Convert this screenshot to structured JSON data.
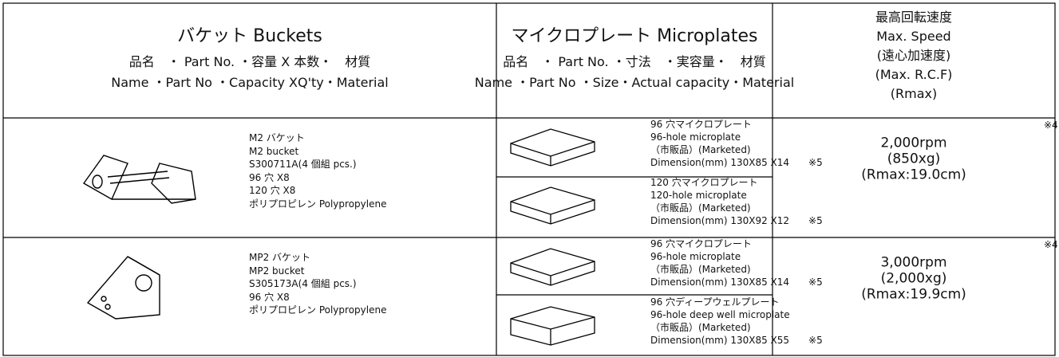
{
  "header": {
    "buckets": [
      "バケット Buckets",
      "品名　・ Part No. ・容量 X 本数・　材質",
      "Name ・Part No ・Capacity XQ'ty・Material"
    ],
    "microplates": [
      "マイクロプレート Microplates",
      "品名　・ Part No. ・寸法　・実容量・　材質",
      "Name ・Part No ・Size・Actual capacity・Material"
    ],
    "speed": [
      "最高回転速度",
      "Max. Speed",
      "(遠心加速度)",
      "(Max. R.C.F)",
      "(Rmax)"
    ]
  },
  "rows": [
    {
      "bucket": [
        "M2 バケット",
        "M2 bucket",
        "S300711A(4 個組 pcs.)",
        "96 穴 X8",
        "120 穴 X8",
        "ポリプロピレン Polypropylene"
      ],
      "plates": [
        [
          "96 穴マイクロプレート",
          "96-hole microplate",
          "（市販品）(Marketed)",
          "Dimension(mm) 130X85 X14　　※5"
        ],
        [
          "120 穴マイクロプレート",
          "120-hole microplate",
          "（市販品）(Marketed)",
          "Dimension(mm) 130X92 X12　　※5"
        ]
      ],
      "speed": {
        "note": "※4",
        "lines": [
          "2,000rpm",
          "(850xg)",
          "(Rmax:19.0cm)"
        ]
      }
    },
    {
      "bucket": [
        "MP2 バケット",
        "MP2 bucket",
        "S305173A(4 個組 pcs.)",
        "96 穴 X8",
        "ポリプロピレン Polypropylene"
      ],
      "plates": [
        [
          "96 穴マイクロプレート",
          "96-hole microplate",
          "（市販品）(Marketed)",
          "Dimension(mm) 130X85 X14　　※5"
        ],
        [
          "96 穴ディープウェルプレート",
          "96-hole deep well microplate",
          "（市販品）(Marketed)",
          "Dimension(mm) 130X85 X55　　※5"
        ]
      ],
      "speed": {
        "note": "※4",
        "lines": [
          "3,000rpm",
          "(2,000xg)",
          "(Rmax:19.9cm)"
        ]
      }
    }
  ]
}
